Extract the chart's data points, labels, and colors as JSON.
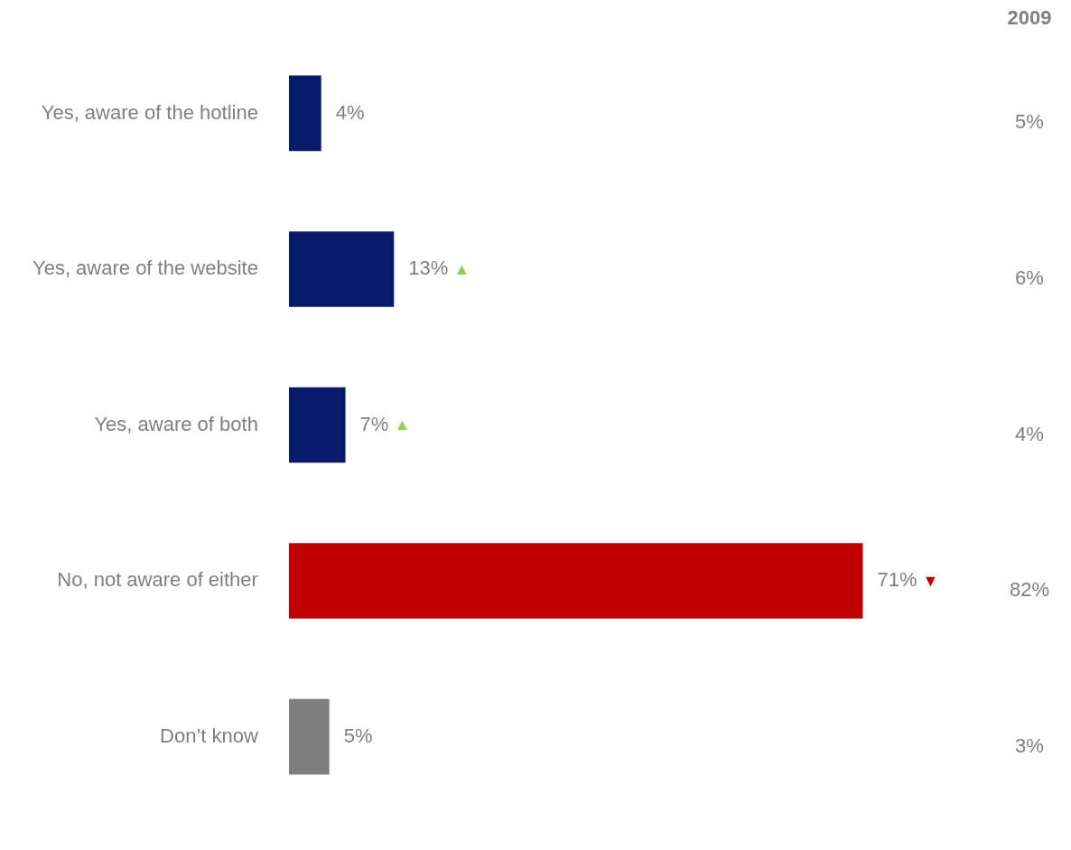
{
  "chart_data": {
    "type": "bar",
    "orientation": "horizontal",
    "categories": [
      "Yes, aware of the hotline",
      "Yes, aware of the website",
      "Yes, aware of both",
      "No, not aware of either",
      "Don’t know"
    ],
    "values": [
      4,
      13,
      7,
      71,
      5
    ],
    "colors": [
      "#0a1a6b",
      "#0a1a6b",
      "#0a1a6b",
      "#c00000",
      "#7f7f7f"
    ],
    "value_labels": [
      "4%",
      "13% ▲",
      "7% ▲",
      "71% ▼",
      "5%"
    ],
    "legend": false,
    "annotations": [
      "2009",
      "5%",
      "6%",
      "4%",
      "82%",
      "3%"
    ]
  }
}
